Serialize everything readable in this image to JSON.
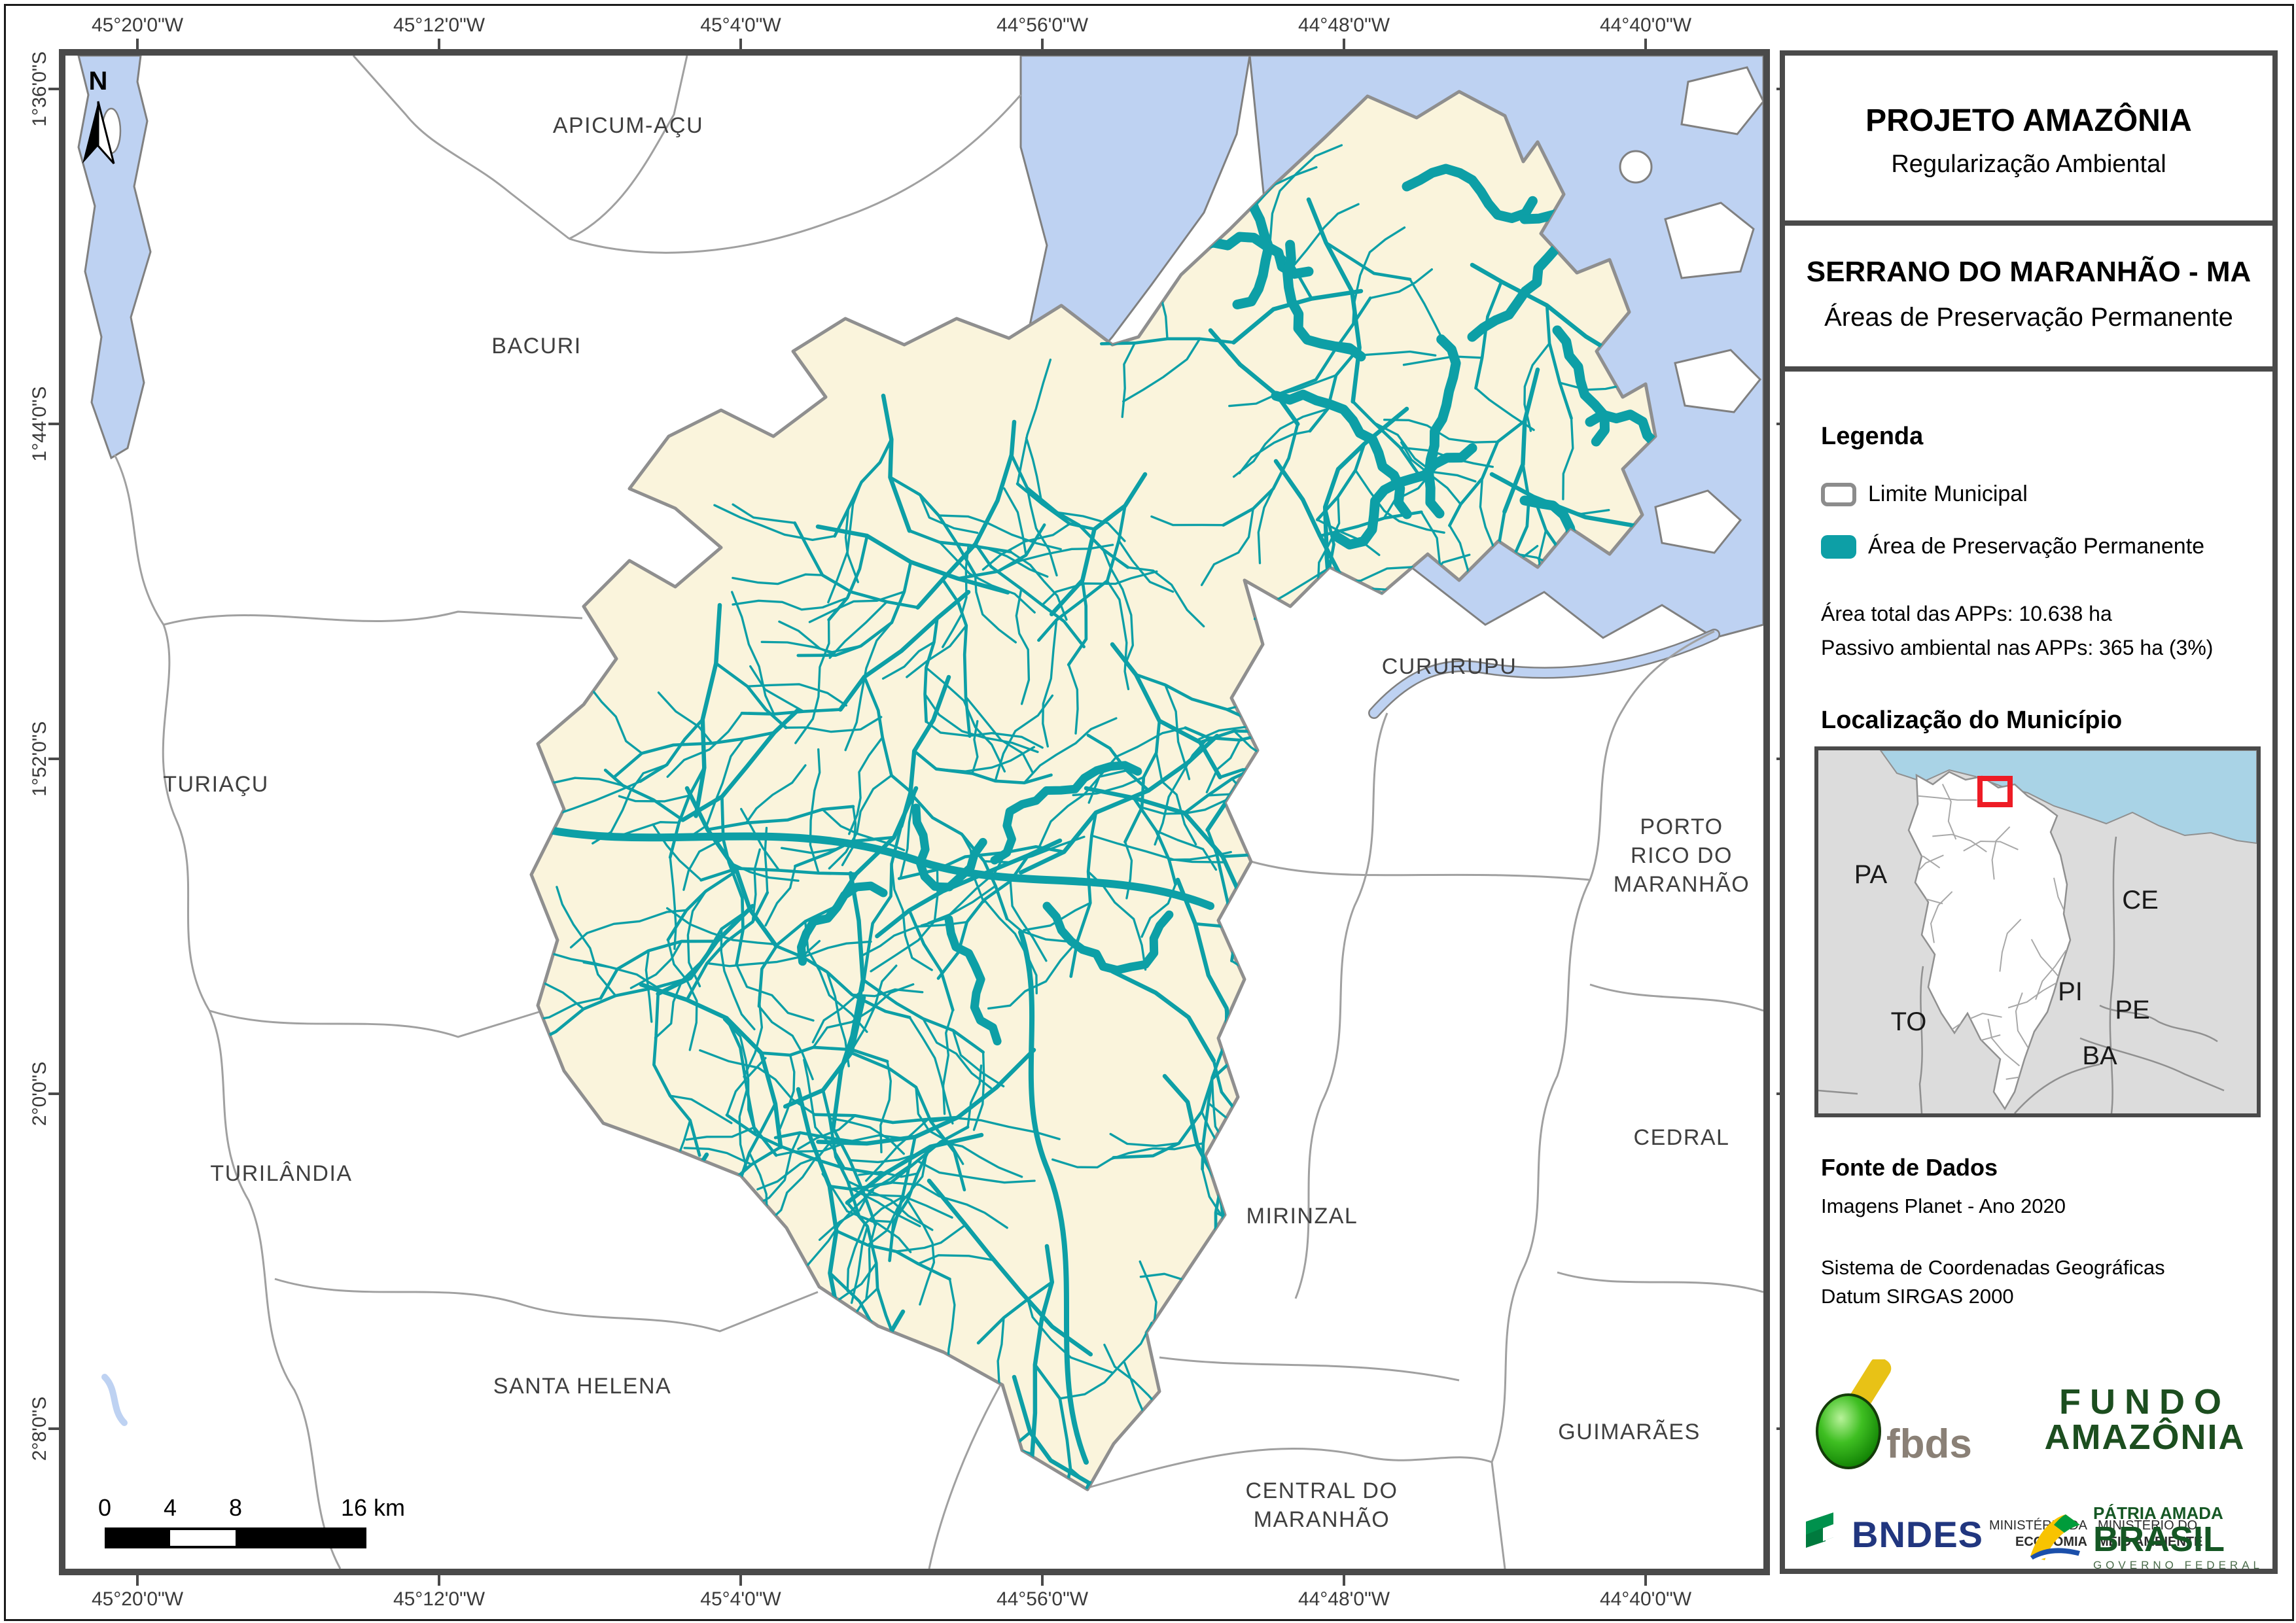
{
  "colors": {
    "app_teal": "#0d9fa6",
    "water_blue": "#bed2f2",
    "water_stroke": "#808080",
    "muni_fill": "#faf4dc",
    "muni_stroke": "#8f8f8f",
    "boundary_gray": "#a0a0a0",
    "inset_ocean": "#a9d3e6",
    "inset_land": "#dcdcdc",
    "red_box": "#ee1c25",
    "frame_dark": "#4a4a4a"
  },
  "map": {
    "lon_labels": [
      "45°20'0\"W",
      "45°12'0\"W",
      "45°4'0\"W",
      "44°56'0\"W",
      "44°48'0\"W",
      "44°40'0\"W"
    ],
    "lat_labels": [
      "1°36'0\"S",
      "1°44'0\"S",
      "1°52'0\"S",
      "2°0'0\"S",
      "2°8'0\"S"
    ],
    "north_label": "N",
    "labels": [
      {
        "t": "APICUM-AÇU"
      },
      {
        "t": "BACURI"
      },
      {
        "t": "TURIAÇU"
      },
      {
        "t": "TURILÂNDIA"
      },
      {
        "t": "SANTA HELENA"
      },
      {
        "t": "CURURUPU"
      },
      {
        "t": "PORTO"
      },
      {
        "t": "RICO DO"
      },
      {
        "t": "MARANHÃO"
      },
      {
        "t": "CEDRAL"
      },
      {
        "t": "MIRINZAL"
      },
      {
        "t": "CENTRAL DO"
      },
      {
        "t": "MARANHÃO"
      },
      {
        "t": "GUIMARÃES"
      }
    ],
    "scalebar": {
      "t0": "0",
      "t4": "4",
      "t8": "8",
      "t16": "16 km"
    }
  },
  "panel": {
    "title": "PROJETO AMAZÔNIA",
    "subtitle": "Regularização Ambiental",
    "muni_title": "SERRANO DO MARANHÃO - MA",
    "muni_subtitle": "Áreas de Preservação Permanente",
    "legend": {
      "heading": "Legenda",
      "items": [
        {
          "label": "Limite Municipal"
        },
        {
          "label": "Área de Preservação Permanente"
        }
      ]
    },
    "stats": [
      "Área total das APPs: 10.638 ha",
      "Passivo ambiental nas APPs: 365 ha (3%)"
    ],
    "location": {
      "heading": "Localização do Município",
      "states": [
        "PA",
        "TO",
        "CE",
        "PI",
        "PE",
        "BA"
      ]
    },
    "source": {
      "heading": "Fonte de Dados",
      "lines": [
        "Imagens Planet - Ano 2020",
        "Sistema de Coordenadas Geográficas",
        "Datum SIRGAS 2000"
      ]
    },
    "logos": {
      "fbds": "fbds",
      "fundo_line1": "FUNDO",
      "fundo_line2": "AMAZÔNIA",
      "bndes": "BNDES",
      "ministry1_line1": "MINISTÉRIO DA",
      "ministry1_line2": "ECONOMIA",
      "ministry2_line1": "MINISTÉRIO DO",
      "ministry2_line2": "MEIO AMBIENTE",
      "brasil_line1": "PÁTRIA AMADA",
      "brasil_line2": "BRASIL",
      "brasil_line3": "GOVERNO FEDERAL"
    }
  }
}
